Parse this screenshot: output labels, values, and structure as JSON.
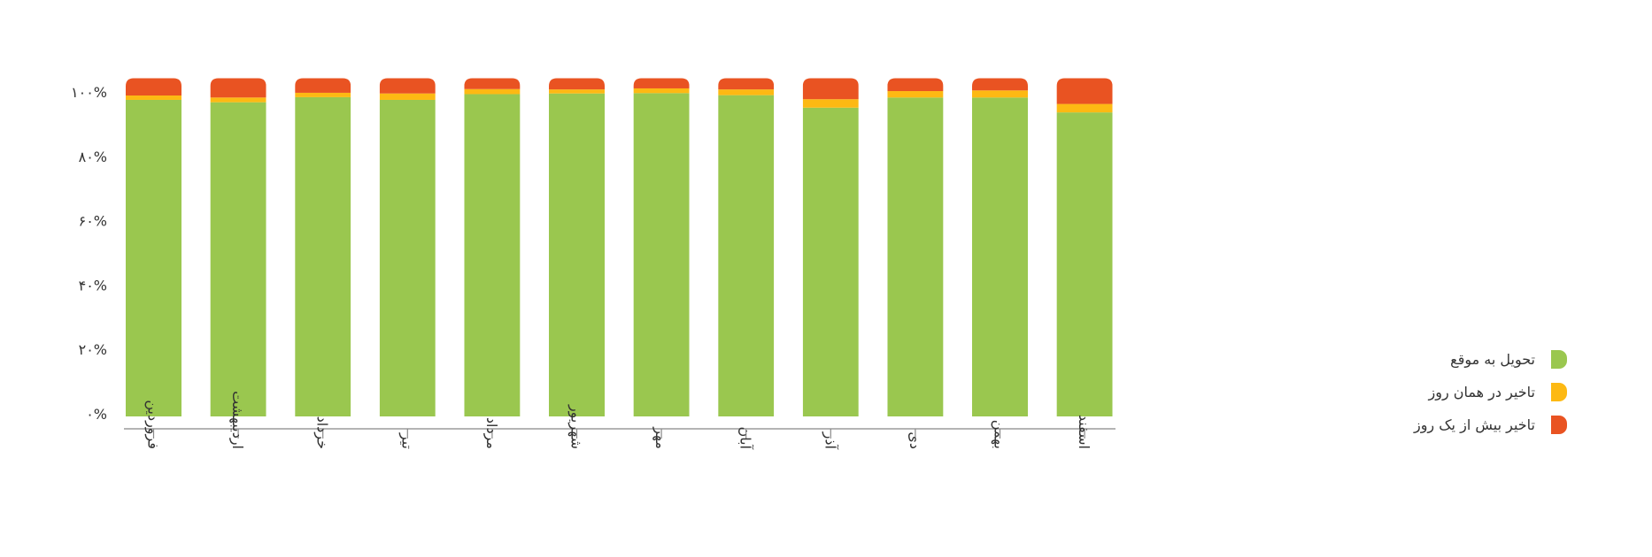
{
  "chart_data": {
    "type": "bar",
    "stacked": true,
    "percent": true,
    "title": "",
    "xlabel": "",
    "ylabel": "",
    "ylim": [
      0,
      100
    ],
    "yticks": [
      "۰%",
      "۲۰%",
      "۴۰%",
      "۶۰%",
      "۸۰%",
      "۱۰۰%"
    ],
    "ytick_values": [
      0,
      20,
      40,
      60,
      80,
      100
    ],
    "categories": [
      "فروردین",
      "اردیبهشت",
      "خرداد",
      "تیر",
      "مرداد",
      "شهریور",
      "مهر",
      "آبان",
      "آذر",
      "دی",
      "بهمن",
      "اسفند"
    ],
    "series": [
      {
        "name": "تحویل به موقع",
        "color": "#9AC74F",
        "values": [
          93.6,
          92.9,
          94.4,
          93.6,
          95.3,
          95.5,
          95.6,
          95.0,
          91.3,
          94.3,
          94.3,
          89.9
        ]
      },
      {
        "name": "تاخیر در همان روز",
        "color": "#FDB913",
        "values": [
          1.3,
          1.4,
          1.3,
          1.9,
          1.5,
          1.2,
          1.4,
          1.7,
          2.5,
          1.9,
          2.1,
          2.5
        ]
      },
      {
        "name": "تاخیر بیش از یک روز",
        "color": "#E95322",
        "values": [
          5.1,
          5.7,
          4.3,
          4.5,
          3.2,
          3.3,
          3.0,
          3.3,
          6.2,
          3.8,
          3.6,
          7.6
        ]
      }
    ],
    "legend_position": "right",
    "grid": false
  }
}
